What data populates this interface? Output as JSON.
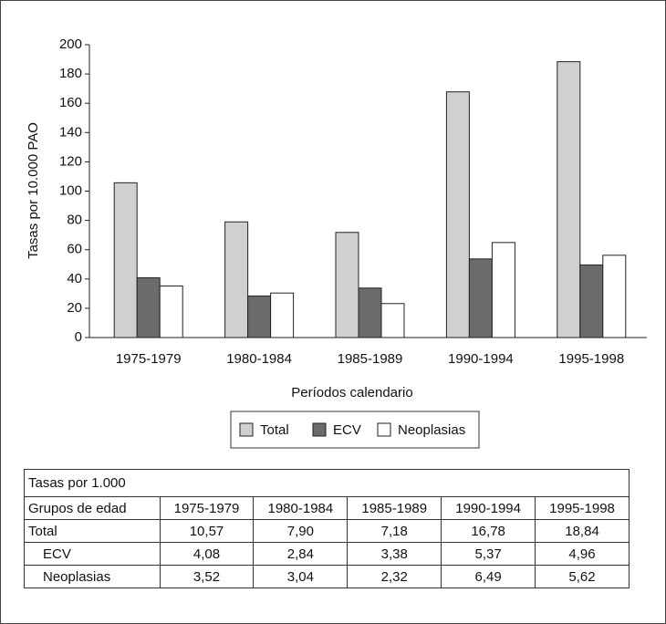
{
  "chart_data": {
    "type": "bar",
    "y_label": "Tasas por 10.000 PAO",
    "x_label": "Períodos calendario",
    "categories": [
      "1975-1979",
      "1980-1984",
      "1985-1989",
      "1990-1994",
      "1995-1998"
    ],
    "series": [
      {
        "name": "Total",
        "color": "#d0d0d0",
        "values": [
          105.7,
          79.0,
          71.8,
          167.8,
          188.4
        ]
      },
      {
        "name": "ECV",
        "color": "#6b6b6b",
        "values": [
          40.8,
          28.4,
          33.8,
          53.7,
          49.6
        ]
      },
      {
        "name": "Neoplasias",
        "color": "#ffffff",
        "values": [
          35.2,
          30.4,
          23.2,
          64.9,
          56.2
        ]
      }
    ],
    "ylim": [
      0,
      200
    ],
    "yticks": [
      0,
      20,
      40,
      60,
      80,
      100,
      120,
      140,
      160,
      180,
      200
    ],
    "grid": false,
    "legend": "bottom"
  },
  "table": {
    "title": "Tasas por 1.000",
    "header": [
      "Grupos de edad",
      "1975-1979",
      "1980-1984",
      "1985-1989",
      "1990-1994",
      "1995-1998"
    ],
    "rows": [
      [
        "Total",
        "10,57",
        "7,90",
        "7,18",
        "16,78",
        "18,84"
      ],
      [
        "ECV",
        "4,08",
        "2,84",
        "3,38",
        "5,37",
        "4,96"
      ],
      [
        "Neoplasias",
        "3,52",
        "3,04",
        "2,32",
        "6,49",
        "5,62"
      ]
    ]
  }
}
